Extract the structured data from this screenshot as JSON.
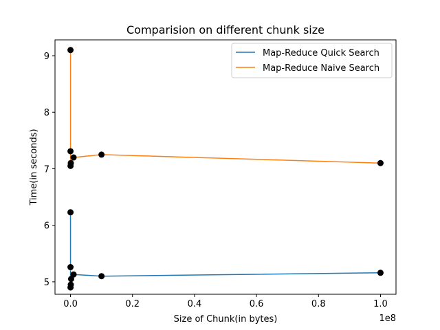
{
  "chart_data": {
    "type": "line",
    "title": "Comparision on different chunk size",
    "xlabel": "Size of Chunk(in bytes)",
    "ylabel": "Time(in seconds)",
    "x_offset_label": "1e8",
    "x_scale": 100000000,
    "xlim": [
      -5000000,
      105000000
    ],
    "ylim": [
      4.78,
      9.28
    ],
    "x_ticks": [
      0,
      20000000,
      40000000,
      60000000,
      80000000,
      100000000
    ],
    "x_tick_labels": [
      "0.0",
      "0.2",
      "0.4",
      "0.6",
      "0.8",
      "1.0"
    ],
    "y_ticks": [
      5,
      6,
      7,
      8,
      9
    ],
    "y_tick_labels": [
      "5",
      "6",
      "7",
      "8",
      "9"
    ],
    "grid": false,
    "legend_position": "top-right",
    "marker_color": "#000000",
    "series": [
      {
        "name": "Map-Reduce Quick Search",
        "color": "#1f77b4",
        "points": [
          {
            "x": 100,
            "y": 6.23
          },
          {
            "x": 1000,
            "y": 5.26
          },
          {
            "x": 10000,
            "y": 4.9
          },
          {
            "x": 100000,
            "y": 4.95
          },
          {
            "x": 200000,
            "y": 5.05
          },
          {
            "x": 1000000,
            "y": 5.13
          },
          {
            "x": 10000000,
            "y": 5.1
          },
          {
            "x": 100000000,
            "y": 5.16
          }
        ]
      },
      {
        "name": "Map-Reduce Naive Search",
        "color": "#ff7f0e",
        "points": [
          {
            "x": 100,
            "y": 9.1
          },
          {
            "x": 1000,
            "y": 7.31
          },
          {
            "x": 10000,
            "y": 7.05
          },
          {
            "x": 100000,
            "y": 7.1
          },
          {
            "x": 1000000,
            "y": 7.2
          },
          {
            "x": 10000000,
            "y": 7.25
          },
          {
            "x": 100000000,
            "y": 7.1
          }
        ]
      }
    ]
  }
}
